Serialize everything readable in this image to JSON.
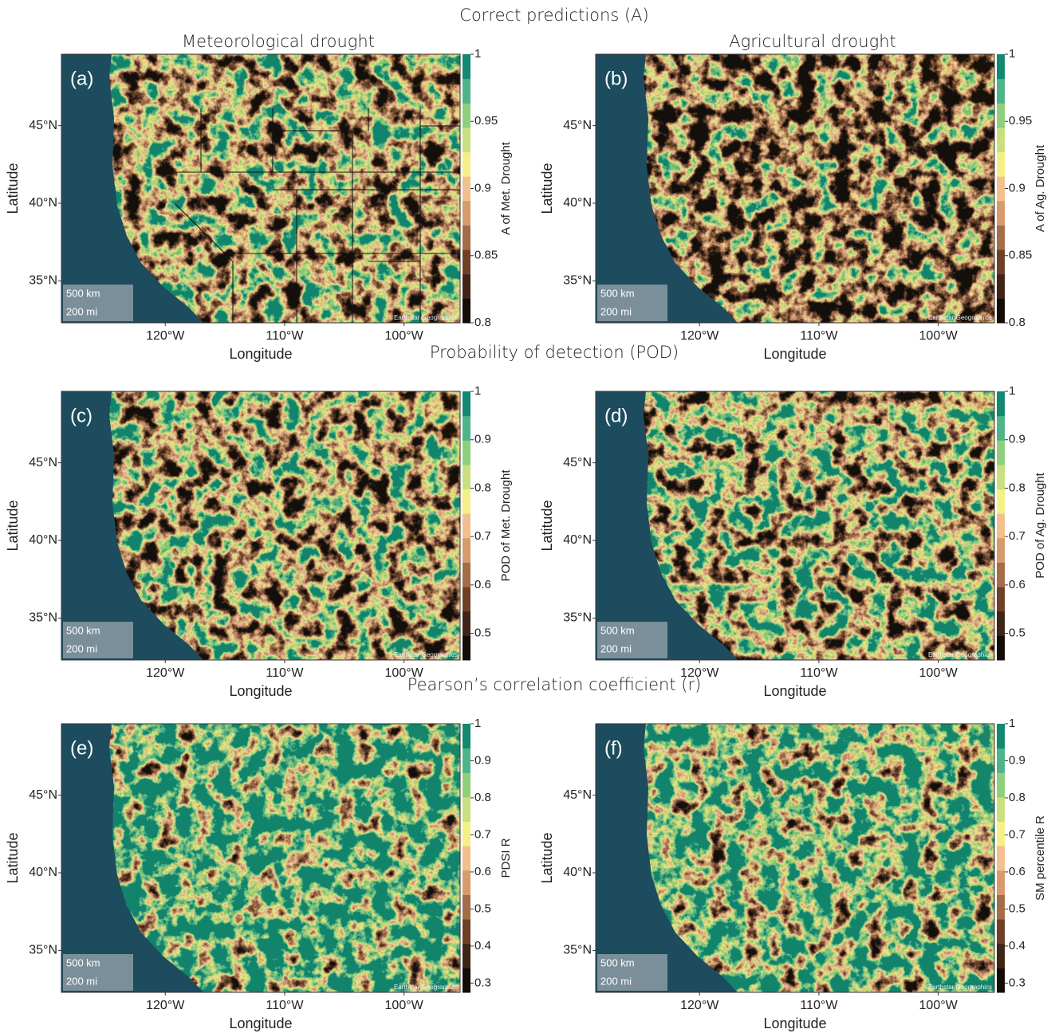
{
  "sections": [
    {
      "title": "Correct predictions (A)",
      "panels": [
        {
          "label": "(a)",
          "colorbar_label": "A of Met. Drought"
        },
        {
          "label": "(b)",
          "colorbar_label": "A of Ag. Drought"
        }
      ],
      "colorbar": {
        "range": [
          0.8,
          1
        ],
        "ticks": [
          0.8,
          0.85,
          0.9,
          0.95,
          1
        ]
      }
    },
    {
      "title": "Probability of detection (POD)",
      "panels": [
        {
          "label": "(c)",
          "colorbar_label": "POD of Met. Drought"
        },
        {
          "label": "(d)",
          "colorbar_label": "POD of Ag. Drought"
        }
      ],
      "colorbar": {
        "range": [
          0.445,
          1
        ],
        "ticks": [
          0.5,
          0.6,
          0.7,
          0.8,
          0.9,
          1
        ]
      }
    },
    {
      "title": "Pearson’s correlation coefficient (r)",
      "panels": [
        {
          "label": "(e)",
          "colorbar_label": "PDSI R"
        },
        {
          "label": "(f)",
          "colorbar_label": "SM percentile R"
        }
      ],
      "colorbar": {
        "range": [
          0.275,
          1
        ],
        "ticks": [
          0.3,
          0.4,
          0.5,
          0.6,
          0.7,
          0.8,
          0.9,
          1
        ]
      }
    }
  ],
  "column_titles": [
    "Meteorological drought",
    "Agricultural drought"
  ],
  "map": {
    "xlim": [
      -128.7,
      -95.3
    ],
    "ylim": [
      32.3,
      49.6
    ],
    "xticks": [
      {
        "value": -120,
        "label": "120°W"
      },
      {
        "value": -110,
        "label": "110°W"
      },
      {
        "value": -100,
        "label": "100°W"
      }
    ],
    "yticks": [
      {
        "value": 45,
        "label": "45°N"
      },
      {
        "value": 40,
        "label": "40°N"
      },
      {
        "value": 35,
        "label": "35°N"
      }
    ],
    "x_label": "Longitude",
    "y_label": "Latitude",
    "scale_bar": [
      "500 km",
      "200 mi"
    ],
    "attribution": "Earthstar Geographics"
  },
  "colormap": [
    "#140c06",
    "#3f2515",
    "#6e4127",
    "#a26d48",
    "#d69a6c",
    "#f2bf8e",
    "#f4ef86",
    "#c8e07e",
    "#8fcf7c",
    "#4fb48a",
    "#138a6f"
  ]
}
